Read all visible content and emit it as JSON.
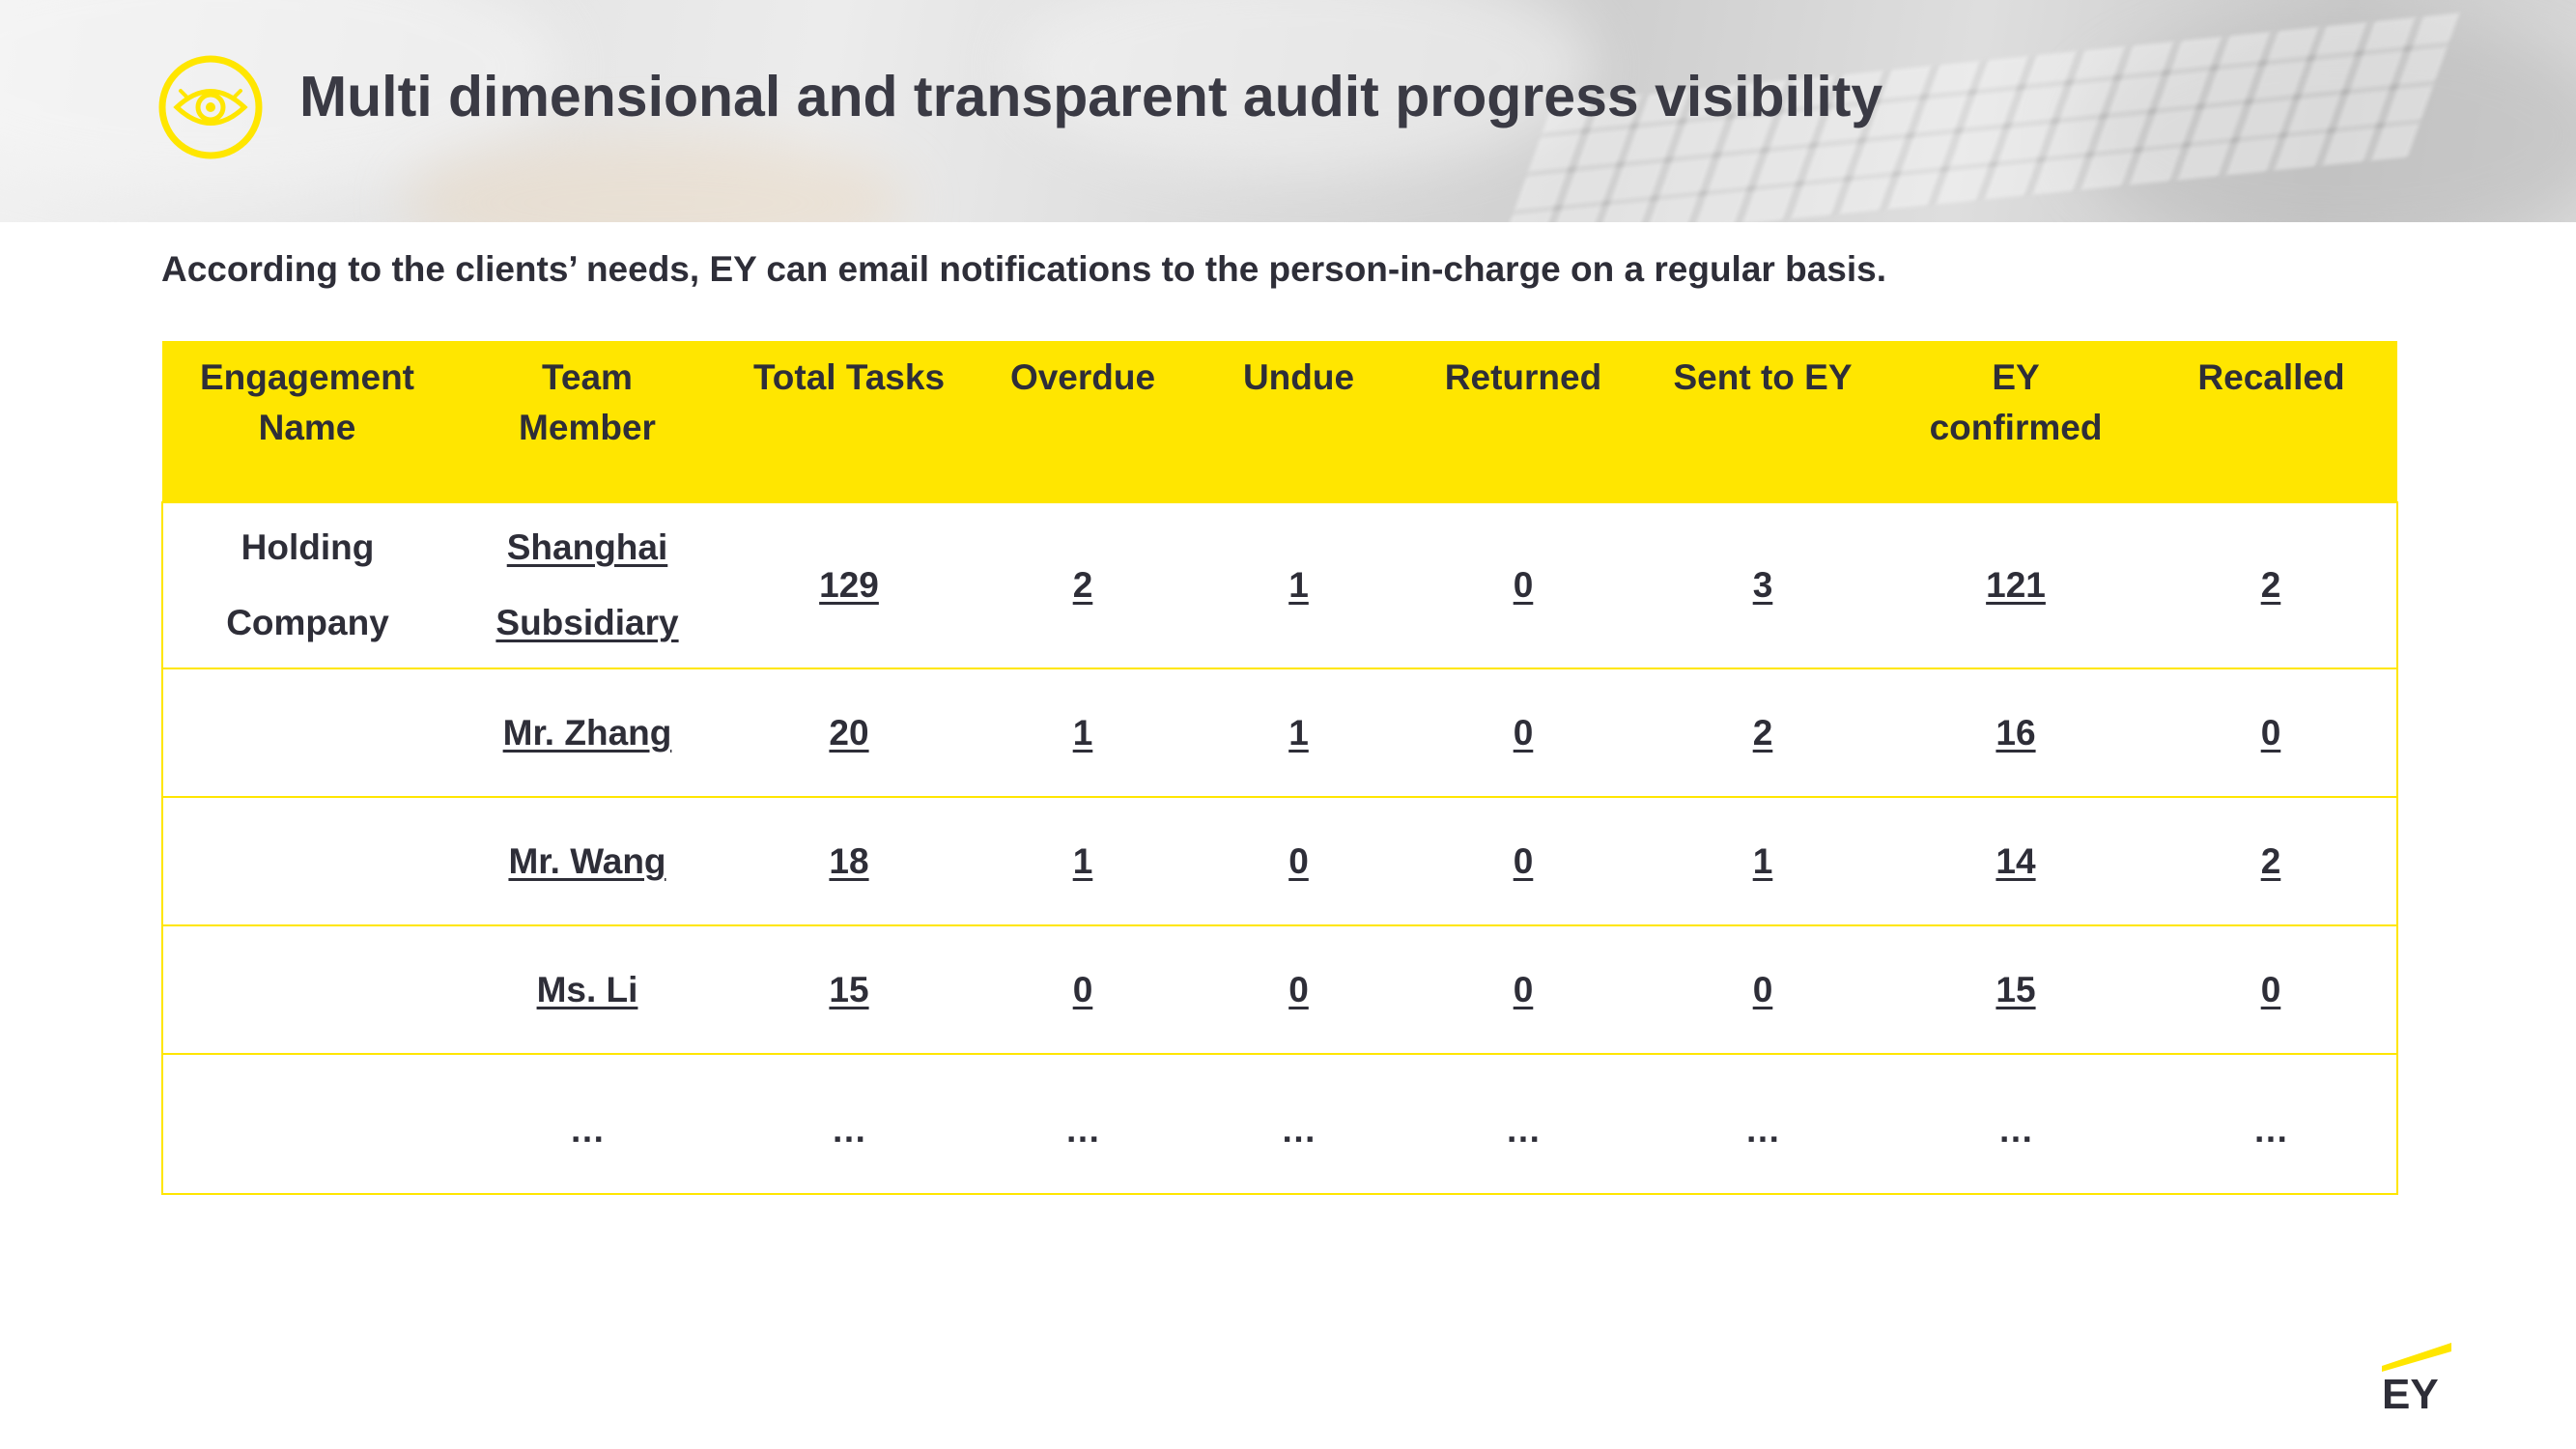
{
  "header": {
    "title": "Multi dimensional and transparent audit progress visibility",
    "icon": "eye-icon",
    "accent": "#ffe600"
  },
  "subtitle": "According to the clients’ needs, EY can email notifications to the person-in-charge on a regular basis.",
  "table": {
    "header_color": "#ffe600",
    "columns": [
      {
        "line1": "Engagement",
        "line2": "Name"
      },
      {
        "line1": "Team",
        "line2": "Member"
      },
      {
        "line1": "Total Tasks",
        "line2": ""
      },
      {
        "line1": "Overdue",
        "line2": ""
      },
      {
        "line1": "Undue",
        "line2": ""
      },
      {
        "line1": "Returned",
        "line2": ""
      },
      {
        "line1": "Sent to EY",
        "line2": ""
      },
      {
        "line1": "EY",
        "line2": "confirmed"
      },
      {
        "line1": "Recalled",
        "line2": ""
      }
    ],
    "first_row": {
      "engagement_line1": "Holding",
      "engagement_line2": "Company",
      "member_line1": "Shanghai",
      "member_line2": "Subsidiary",
      "values": [
        "129",
        "2",
        "1",
        "0",
        "3",
        "121",
        "2"
      ]
    },
    "rows": [
      {
        "member": "Mr. Zhang",
        "values": [
          "20",
          "1",
          "1",
          "0",
          "2",
          "16",
          "0"
        ]
      },
      {
        "member": "Mr. Wang",
        "values": [
          "18",
          "1",
          "0",
          "0",
          "1",
          "14",
          "2"
        ]
      },
      {
        "member": "Ms. Li",
        "values": [
          "15",
          "0",
          "0",
          "0",
          "0",
          "15",
          "0"
        ]
      },
      {
        "member": "…",
        "values": [
          "…",
          "…",
          "…",
          "…",
          "…",
          "…",
          "…"
        ]
      }
    ]
  },
  "logo": {
    "text": "EY",
    "color": "#2e2e38",
    "accent": "#ffe600"
  }
}
